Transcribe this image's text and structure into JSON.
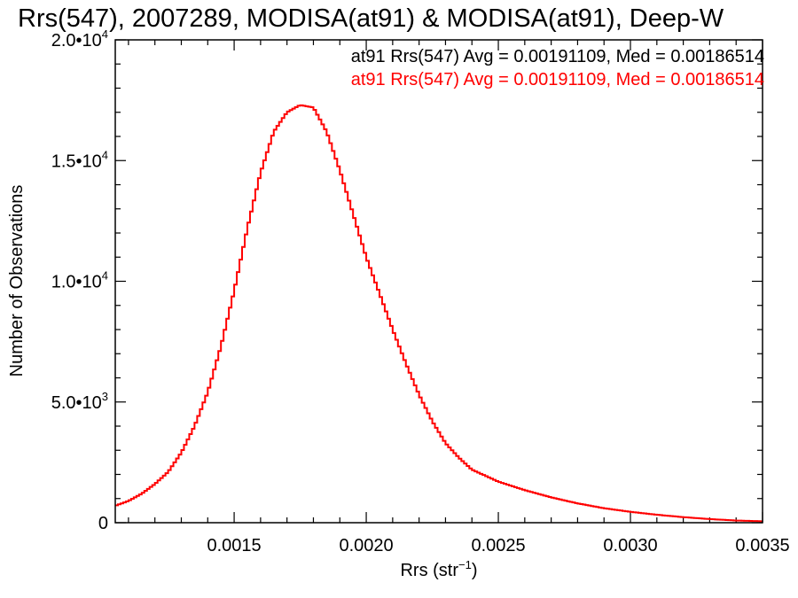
{
  "chart_data": {
    "type": "histogram",
    "title": "Rrs(547), 2007289, MODISA(at91) & MODISA(at91), Deep-W",
    "xlabel": {
      "base": "Rrs (str",
      "sup": "−1",
      "close": ")"
    },
    "ylabel": "Number of Observations",
    "xlim": [
      0.00105,
      0.0035
    ],
    "ylim": [
      0,
      20000
    ],
    "x_ticks": [
      {
        "value": 0.0015,
        "label": "0.0015"
      },
      {
        "value": 0.002,
        "label": "0.0020"
      },
      {
        "value": 0.0025,
        "label": "0.0025"
      },
      {
        "value": 0.003,
        "label": "0.0030"
      },
      {
        "value": 0.0035,
        "label": "0.0035"
      }
    ],
    "y_ticks": [
      {
        "value": 0,
        "mantissa": "0",
        "exp": ""
      },
      {
        "value": 5000,
        "mantissa": "5.0•10",
        "exp": "3"
      },
      {
        "value": 10000,
        "mantissa": "1.0•10",
        "exp": "4"
      },
      {
        "value": 15000,
        "mantissa": "1.5•10",
        "exp": "4"
      },
      {
        "value": 20000,
        "mantissa": "2.0•10",
        "exp": "4"
      }
    ],
    "annotations": [
      {
        "text": "at91 Rrs(547) Avg = 0.00191109, Med = 0.00186514",
        "color": "#000000"
      },
      {
        "text": "at91 Rrs(547) Avg = 0.00191109, Med = 0.00186514",
        "color": "#ff0000"
      }
    ],
    "series": [
      {
        "color": "#ff0000",
        "x": [
          0.00105,
          0.0011,
          0.00115,
          0.0012,
          0.00125,
          0.0013,
          0.00135,
          0.0014,
          0.00145,
          0.0015,
          0.00155,
          0.0016,
          0.00165,
          0.0017,
          0.00175,
          0.0018,
          0.00185,
          0.0019,
          0.00195,
          0.002,
          0.00205,
          0.0021,
          0.00215,
          0.0022,
          0.00225,
          0.0023,
          0.00235,
          0.0024,
          0.0025,
          0.0026,
          0.0027,
          0.0028,
          0.0029,
          0.003,
          0.0031,
          0.0032,
          0.0033,
          0.0034,
          0.0035
        ],
        "y": [
          700,
          900,
          1200,
          1600,
          2100,
          2900,
          4000,
          5400,
          7300,
          9600,
          12200,
          14500,
          16200,
          17000,
          17300,
          17200,
          16200,
          14600,
          12800,
          11000,
          9500,
          8000,
          6600,
          5300,
          4200,
          3300,
          2700,
          2200,
          1700,
          1350,
          1050,
          800,
          600,
          450,
          330,
          230,
          150,
          90,
          60
        ]
      }
    ]
  }
}
